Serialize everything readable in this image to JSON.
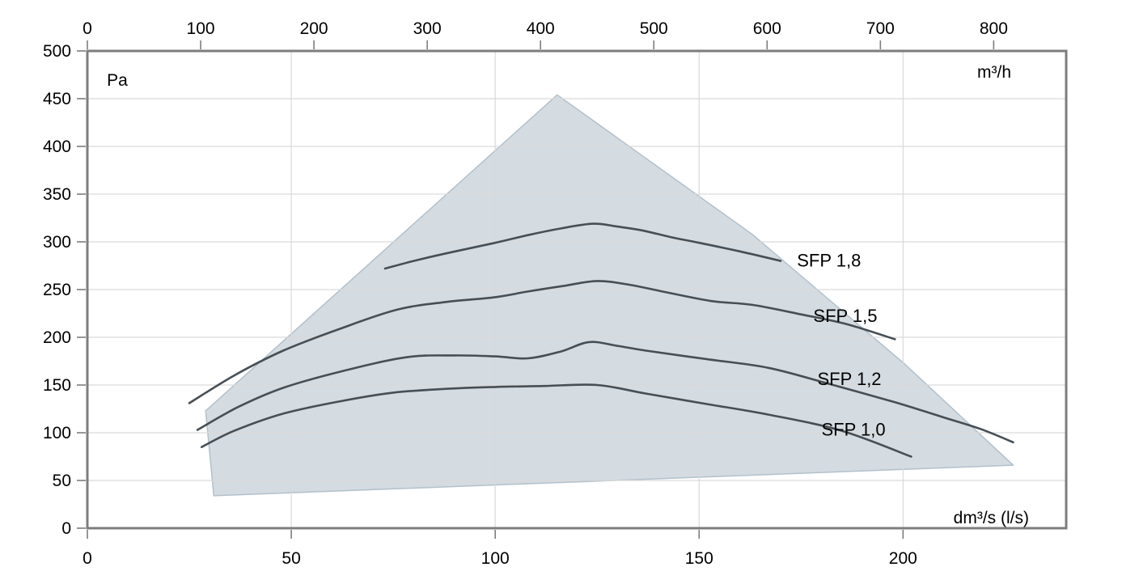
{
  "chart_data": {
    "type": "line",
    "title": "",
    "axes": {
      "y": {
        "unit": "Pa",
        "min": 0,
        "max": 500,
        "tick_step": 50,
        "ticks": [
          0,
          50,
          100,
          150,
          200,
          250,
          300,
          350,
          400,
          450,
          500
        ]
      },
      "x_bottom": {
        "unit": "dm³/s (l/s)",
        "min": 0,
        "max": 240,
        "tick_step": 50,
        "ticks": [
          0,
          50,
          100,
          150,
          200
        ]
      },
      "x_top": {
        "unit": "m³/h",
        "min": 0,
        "max": 864,
        "tick_step": 100,
        "ticks": [
          0,
          100,
          200,
          300,
          400,
          500,
          600,
          700,
          800
        ]
      }
    },
    "grid": {
      "show": true
    },
    "envelope": {
      "label": "operating-area",
      "points": [
        [
          31,
          34
        ],
        [
          29,
          123
        ],
        [
          115.2,
          454
        ],
        [
          163,
          308
        ],
        [
          200.4,
          172
        ],
        [
          227,
          66
        ]
      ]
    },
    "series": [
      {
        "name": "SFP 1,8",
        "label_at": [
          174,
          274
        ],
        "points": [
          [
            73,
            272
          ],
          [
            80,
            280
          ],
          [
            88,
            288
          ],
          [
            100,
            299
          ],
          [
            108,
            307
          ],
          [
            116,
            314
          ],
          [
            124,
            319
          ],
          [
            130,
            316
          ],
          [
            136,
            312
          ],
          [
            143,
            305
          ],
          [
            150,
            299
          ],
          [
            160,
            290
          ],
          [
            170,
            280
          ]
        ]
      },
      {
        "name": "SFP 1,5",
        "label_at": [
          178,
          216
        ],
        "points": [
          [
            25,
            131
          ],
          [
            36,
            160
          ],
          [
            48,
            186
          ],
          [
            62,
            209
          ],
          [
            76,
            229
          ],
          [
            88,
            237
          ],
          [
            100,
            242
          ],
          [
            108,
            248
          ],
          [
            117,
            254
          ],
          [
            125,
            259
          ],
          [
            133,
            255
          ],
          [
            141,
            248
          ],
          [
            153,
            238
          ],
          [
            163,
            234
          ],
          [
            175,
            224
          ],
          [
            186,
            214
          ],
          [
            198,
            198
          ]
        ]
      },
      {
        "name": "SFP 1,2",
        "label_at": [
          179,
          150
        ],
        "points": [
          [
            27,
            103
          ],
          [
            37,
            127
          ],
          [
            48,
            147
          ],
          [
            62,
            164
          ],
          [
            78,
            179
          ],
          [
            90,
            181
          ],
          [
            100,
            180
          ],
          [
            108,
            178
          ],
          [
            116,
            185
          ],
          [
            123,
            195
          ],
          [
            130,
            191
          ],
          [
            137,
            186
          ],
          [
            152,
            177
          ],
          [
            167,
            168
          ],
          [
            182,
            151
          ],
          [
            198,
            132
          ],
          [
            210,
            116
          ],
          [
            219,
            104
          ],
          [
            227,
            90
          ]
        ]
      },
      {
        "name": "SFP 1,0",
        "label_at": [
          180,
          97
        ],
        "points": [
          [
            28,
            85
          ],
          [
            36,
            102
          ],
          [
            48,
            120
          ],
          [
            62,
            133
          ],
          [
            75,
            142
          ],
          [
            88,
            146
          ],
          [
            100,
            148
          ],
          [
            112,
            149
          ],
          [
            125,
            150
          ],
          [
            137,
            141
          ],
          [
            152,
            130
          ],
          [
            167,
            119
          ],
          [
            185,
            102
          ],
          [
            202,
            75
          ]
        ]
      }
    ]
  },
  "colors": {
    "envelope_fill": "#d4dbe1",
    "envelope_stroke": "#b3c1cb",
    "curve": "#474f55",
    "grid": "#d9d9d9",
    "axis": "#7d7d7d",
    "text": "#000000"
  }
}
